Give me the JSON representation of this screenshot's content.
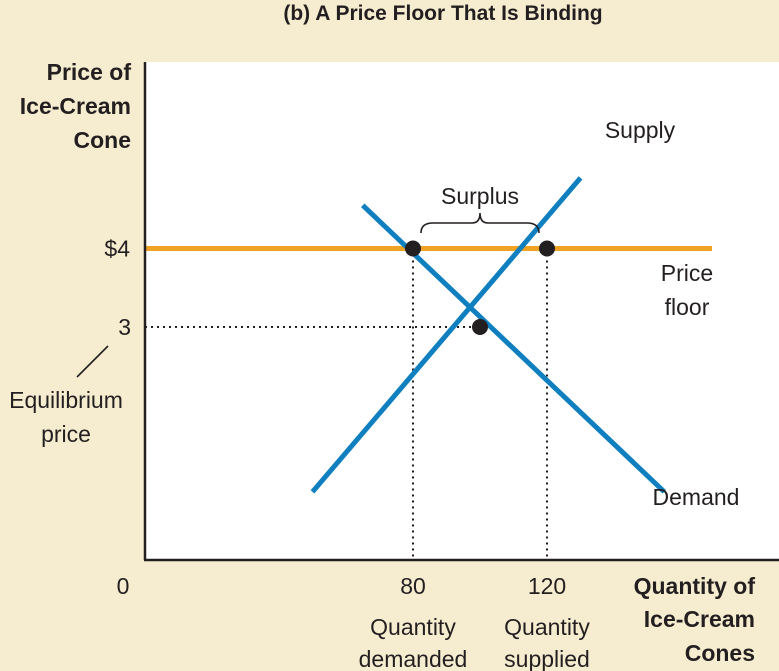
{
  "chart_data": {
    "type": "line",
    "title": "(b) A Price Floor That Is Binding",
    "ylabel_lines": [
      "Price of",
      "Ice-Cream",
      "Cone"
    ],
    "xlabel_lines": [
      "Quantity of",
      "Ice-Cream",
      "Cones"
    ],
    "origin_label": "0",
    "x_ticks": [
      {
        "value": 80,
        "label": "80"
      },
      {
        "value": 120,
        "label": "120"
      }
    ],
    "y_ticks": [
      {
        "value": 4,
        "label": "$4"
      },
      {
        "value": 3,
        "label": "3"
      }
    ],
    "series": [
      {
        "name": "Supply",
        "points": [
          [
            50,
            0.9
          ],
          [
            130,
            4.9
          ]
        ],
        "color": "#0f7fc0"
      },
      {
        "name": "Demand",
        "points": [
          [
            155,
            0.9
          ],
          [
            65,
            4.55
          ]
        ],
        "color": "#0f7fc0"
      }
    ],
    "price_floor": {
      "value": 4,
      "label_lines": [
        "Price",
        "floor"
      ],
      "color": "#f0a224"
    },
    "points": [
      {
        "x": 80,
        "y": 4
      },
      {
        "x": 120,
        "y": 4
      },
      {
        "x": 100,
        "y": 3
      }
    ],
    "surplus": {
      "from": 80,
      "to": 120,
      "label": "Surplus"
    },
    "equilibrium_price": {
      "value": 3,
      "label_lines": [
        "Equilibrium",
        "price"
      ]
    },
    "quantity_labels": [
      {
        "x": 80,
        "lines": [
          "Quantity",
          "demanded"
        ]
      },
      {
        "x": 120,
        "lines": [
          "Quantity",
          "supplied"
        ]
      }
    ]
  }
}
